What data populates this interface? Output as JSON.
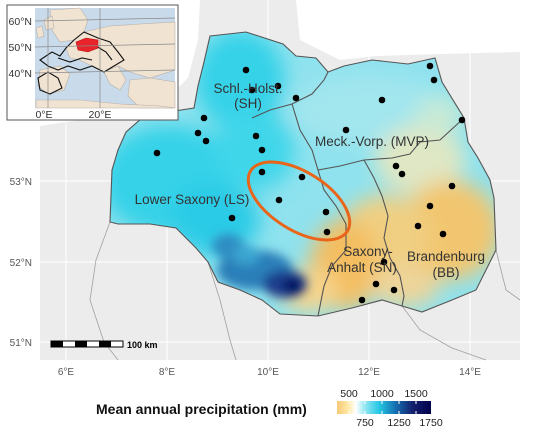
{
  "axes": {
    "x_ticks": [
      "6°E",
      "8°E",
      "10°E",
      "12°E",
      "14°E"
    ],
    "y_ticks": [
      "53°N",
      "52°N",
      "51°N"
    ]
  },
  "regions": [
    {
      "label_lines": [
        "Schl.-Holst.",
        "(SH)"
      ]
    },
    {
      "label_lines": [
        "Meck.-Vorp. (MVP)"
      ]
    },
    {
      "label_lines": [
        "Lower Saxony (LS)"
      ]
    },
    {
      "label_lines": [
        "Saxony-",
        "Anhalt (SN)"
      ]
    },
    {
      "label_lines": [
        "Brandenburg",
        "(BB)"
      ]
    }
  ],
  "scale_bar": {
    "label": "100 km"
  },
  "inset": {
    "lat_ticks": [
      "60°N",
      "50°N",
      "40°N"
    ],
    "lon_ticks": [
      "0°E",
      "20°E"
    ]
  },
  "legend": {
    "title": "Mean annual precipitation (mm)",
    "top_ticks": [
      "500",
      "1000",
      "1500"
    ],
    "bottom_ticks": [
      "750",
      "1250",
      "1750"
    ]
  },
  "colors": {
    "low": "#f3bd63",
    "mid": "#4fe0ea",
    "high": "#00007e",
    "highlight_ellipse": "#e8651a",
    "inset_highlight": "#e8232a"
  }
}
